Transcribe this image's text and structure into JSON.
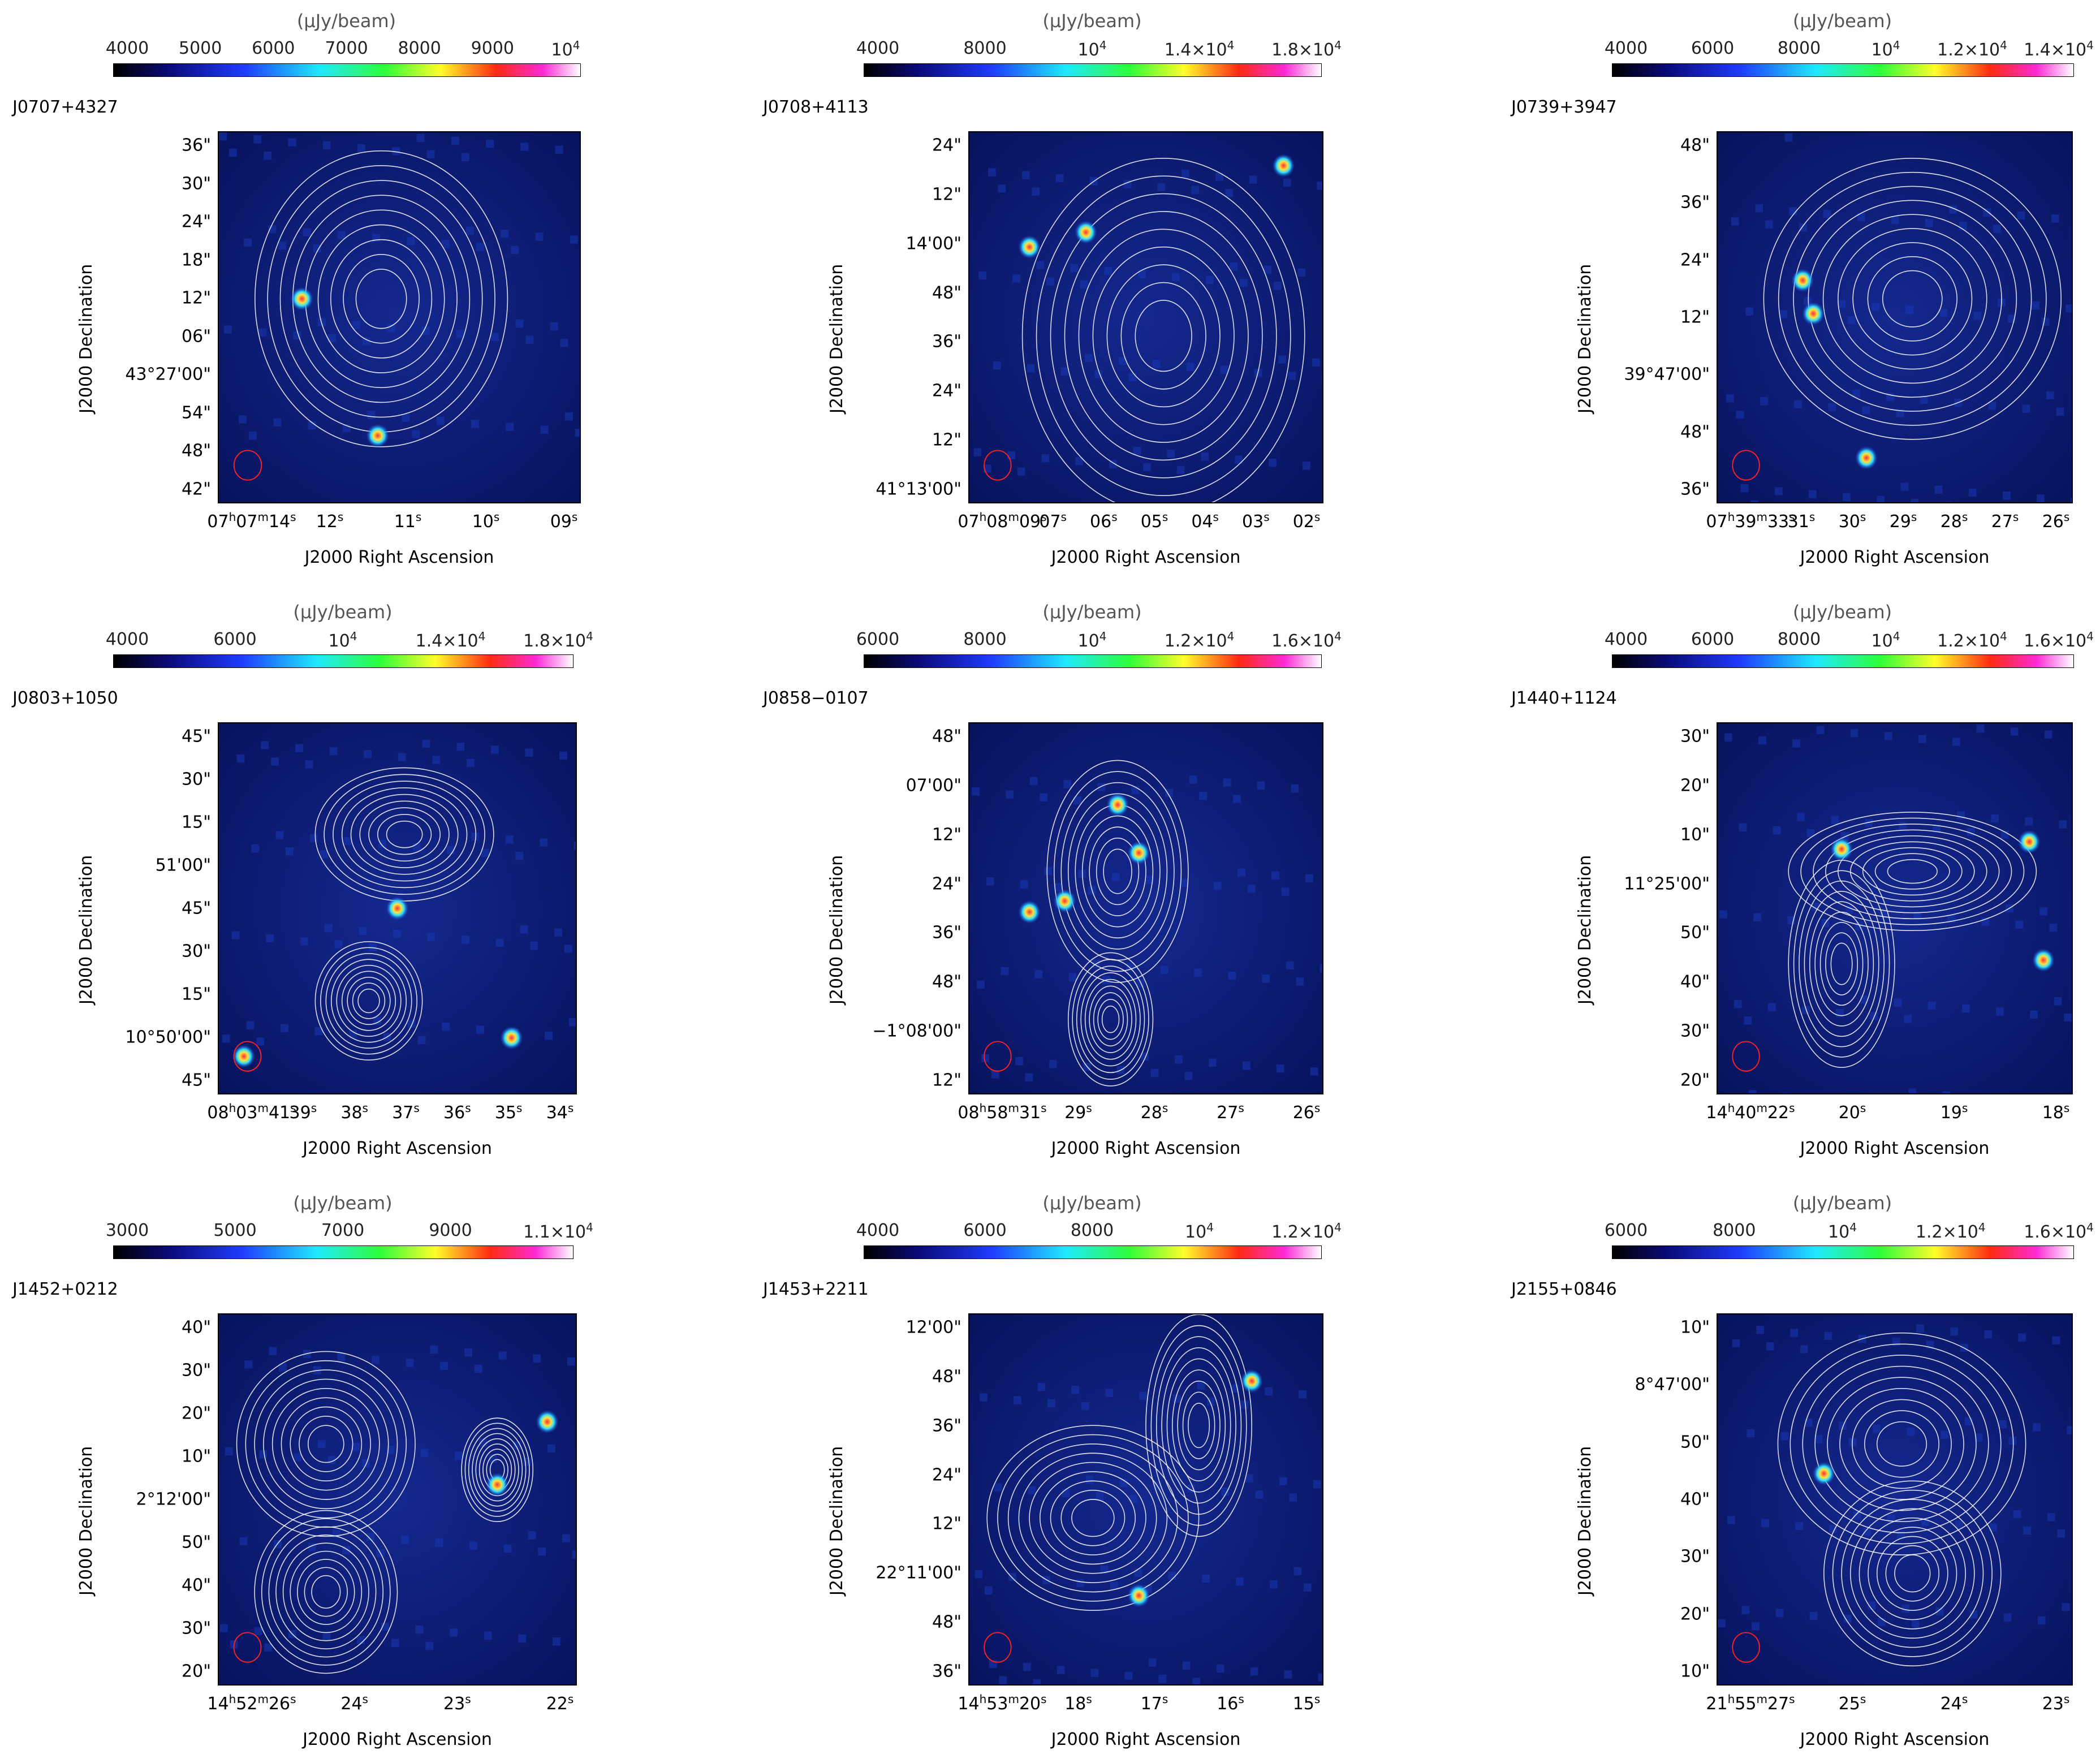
{
  "colorbar_unit": "(μJy/beam)",
  "axis_labels": {
    "x": "J2000 Right Ascension",
    "y": "J2000 Declination"
  },
  "colors": {
    "background": "#0a1a6e",
    "contour": "#ffffff",
    "beam": "#ff2020"
  },
  "panels": [
    {
      "name": "J0707+4327",
      "cbar_ticks": [
        "4000",
        "5000",
        "6000",
        "7000",
        "8000",
        "9000",
        "10^4"
      ],
      "y_ticks": [
        "36\"",
        "30\"",
        "24\"",
        "18\"",
        "12\"",
        "06\"",
        "43°27'00\"",
        "54\"",
        "48\"",
        "42\""
      ],
      "x_ticks": [
        "07h07m14s",
        "12s",
        "11s",
        "10s",
        "09s"
      ]
    },
    {
      "name": "J0708+4113",
      "cbar_ticks": [
        "4000",
        "8000",
        "10^4",
        "1.4×10^4",
        "1.8×10^4"
      ],
      "y_ticks": [
        "24\"",
        "12\"",
        "14'00\"",
        "48\"",
        "36\"",
        "24\"",
        "12\"",
        "41°13'00\""
      ],
      "x_ticks": [
        "07h08m09s",
        "07s",
        "06s",
        "05s",
        "04s",
        "03s",
        "02s"
      ]
    },
    {
      "name": "J0739+3947",
      "cbar_ticks": [
        "4000",
        "6000",
        "8000",
        "10^4",
        "1.2×10^4",
        "1.4×10^4"
      ],
      "y_ticks": [
        "48\"",
        "36\"",
        "24\"",
        "12\"",
        "39°47'00\"",
        "48\"",
        "36\""
      ],
      "x_ticks": [
        "07h39m33s",
        "31s",
        "30s",
        "29s",
        "28s",
        "27s",
        "26s"
      ]
    },
    {
      "name": "J0803+1050",
      "cbar_ticks": [
        "4000",
        "6000",
        "10^4",
        "1.4×10^4",
        "1.8×10^4"
      ],
      "y_ticks": [
        "45\"",
        "30\"",
        "15\"",
        "51'00\"",
        "45\"",
        "30\"",
        "15\"",
        "10°50'00\"",
        "45\""
      ],
      "x_ticks": [
        "08h03m41s",
        "39s",
        "38s",
        "37s",
        "36s",
        "35s",
        "34s"
      ]
    },
    {
      "name": "J0858−0107",
      "cbar_ticks": [
        "6000",
        "8000",
        "10^4",
        "1.2×10^4",
        "1.6×10^4"
      ],
      "y_ticks": [
        "48\"",
        "07'00\"",
        "12\"",
        "24\"",
        "36\"",
        "48\"",
        "−1°08'00\"",
        "12\""
      ],
      "x_ticks": [
        "08h58m31s",
        "29s",
        "28s",
        "27s",
        "26s"
      ]
    },
    {
      "name": "J1440+1124",
      "cbar_ticks": [
        "4000",
        "6000",
        "8000",
        "10^4",
        "1.2×10^4",
        "1.6×10^4"
      ],
      "y_ticks": [
        "30\"",
        "20\"",
        "10\"",
        "11°25'00\"",
        "50\"",
        "40\"",
        "30\"",
        "20\""
      ],
      "x_ticks": [
        "14h40m22s",
        "20s",
        "19s",
        "18s"
      ]
    },
    {
      "name": "J1452+0212",
      "cbar_ticks": [
        "3000",
        "5000",
        "7000",
        "9000",
        "1.1×10^4"
      ],
      "y_ticks": [
        "40\"",
        "30\"",
        "20\"",
        "10\"",
        "2°12'00\"",
        "50\"",
        "40\"",
        "30\"",
        "20\""
      ],
      "x_ticks": [
        "14h52m26s",
        "24s",
        "23s",
        "22s"
      ]
    },
    {
      "name": "J1453+2211",
      "cbar_ticks": [
        "4000",
        "6000",
        "8000",
        "10^4",
        "1.2×10^4"
      ],
      "y_ticks": [
        "12'00\"",
        "48\"",
        "36\"",
        "24\"",
        "12\"",
        "22°11'00\"",
        "48\"",
        "36\""
      ],
      "x_ticks": [
        "14h53m20s",
        "18s",
        "17s",
        "16s",
        "15s"
      ]
    },
    {
      "name": "J2155+0846",
      "cbar_ticks": [
        "6000",
        "8000",
        "10^4",
        "1.2×10^4",
        "1.6×10^4"
      ],
      "y_ticks": [
        "10\"",
        "8°47'00\"",
        "50\"",
        "40\"",
        "30\"",
        "20\"",
        "10\""
      ],
      "x_ticks": [
        "21h55m27s",
        "25s",
        "24s",
        "23s"
      ]
    }
  ]
}
